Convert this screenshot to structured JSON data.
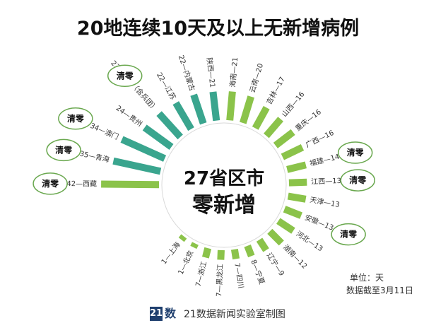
{
  "title": "20地连续10天及以上无新增病例",
  "center": {
    "line1": "27省区市",
    "line2": "零新增"
  },
  "notes": {
    "unit": "单位：天",
    "date": "数据截至3月11日"
  },
  "footer": {
    "logo_1": "21",
    "logo_2": "数",
    "text": "21数据新闻实验室制图"
  },
  "colors": {
    "green": "#8bc34a",
    "teal": "#3aa58e",
    "bubble_border": "#6aa84f"
  },
  "chart_data": {
    "type": "radial-bar",
    "title": "20地连续10天及以上无新增病例",
    "unit": "天",
    "series": [
      {
        "label": "42—西藏",
        "value": 42,
        "cleared": true
      },
      {
        "label": "35—青海",
        "value": 35,
        "cleared": true
      },
      {
        "label": "34—澳门",
        "value": 34,
        "cleared": true
      },
      {
        "label": "24—贵州",
        "value": 24,
        "cleared": false
      },
      {
        "label": "23—新疆（含兵团）",
        "value": 23,
        "cleared": true
      },
      {
        "label": "22—江苏",
        "value": 22,
        "cleared": false
      },
      {
        "label": "22—内蒙古",
        "value": 22,
        "cleared": false
      },
      {
        "label": "陕西—21",
        "value": 21,
        "cleared": false
      },
      {
        "label": "海南—21",
        "value": 21,
        "cleared": false
      },
      {
        "label": "云南—20",
        "value": 20,
        "cleared": false
      },
      {
        "label": "吉林—17",
        "value": 17,
        "cleared": false
      },
      {
        "label": "山西—16",
        "value": 16,
        "cleared": false
      },
      {
        "label": "重庆—16",
        "value": 16,
        "cleared": false
      },
      {
        "label": "广西—16",
        "value": 16,
        "cleared": false
      },
      {
        "label": "福建—14",
        "value": 14,
        "cleared": true
      },
      {
        "label": "江西—13",
        "value": 13,
        "cleared": true
      },
      {
        "label": "天津—13",
        "value": 13,
        "cleared": false
      },
      {
        "label": "安徽—13",
        "value": 13,
        "cleared": true
      },
      {
        "label": "河北—13",
        "value": 13,
        "cleared": false
      },
      {
        "label": "湖南—12",
        "value": 12,
        "cleared": false
      },
      {
        "label": "辽宁—9",
        "value": 9,
        "cleared": false
      },
      {
        "label": "8—宁夏",
        "value": 8,
        "cleared": false
      },
      {
        "label": "7—四川",
        "value": 7,
        "cleared": false
      },
      {
        "label": "7—黑龙江",
        "value": 7,
        "cleared": false
      },
      {
        "label": "7—浙江",
        "value": 7,
        "cleared": false
      },
      {
        "label": "1—北京",
        "value": 1,
        "cleared": false
      },
      {
        "label": "1—上海",
        "value": 1,
        "cleared": false
      }
    ],
    "badge_text": "清零"
  }
}
